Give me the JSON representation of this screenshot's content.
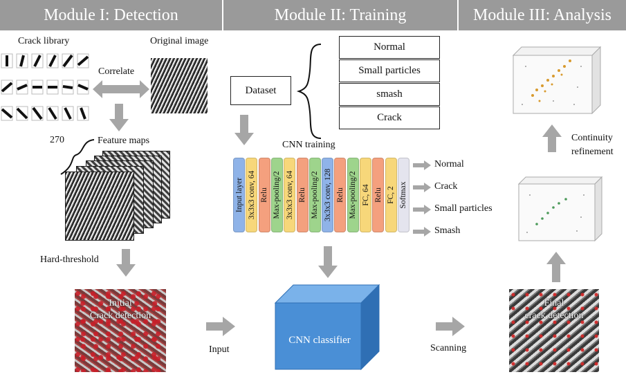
{
  "headers": {
    "module1": "Module I: Detection",
    "module2": "Module II: Training",
    "module3": "Module III: Analysis"
  },
  "module1": {
    "crack_library": "Crack library",
    "original_image": "Original image",
    "correlate": "Correlate",
    "feature_count": "270",
    "feature_maps": "Feature maps",
    "hard_threshold": "Hard-threshold",
    "initial_detection_line1": "Initial",
    "initial_detection_line2": "Crack detection"
  },
  "module2": {
    "dataset": "Dataset",
    "categories": [
      "Normal",
      "Small particles",
      "smash",
      "Crack"
    ],
    "cnn_training": "CNN training",
    "layers": [
      {
        "label": "Input layer",
        "color": "#8fb3e8"
      },
      {
        "label": "3x3x3 conv, 64",
        "color": "#f7d77a"
      },
      {
        "label": "Relu",
        "color": "#f4a07e"
      },
      {
        "label": "Max-pooling/2",
        "color": "#9ed48c"
      },
      {
        "label": "3x3x3 conv, 64",
        "color": "#f7d77a"
      },
      {
        "label": "Relu",
        "color": "#f4a07e"
      },
      {
        "label": "Max-pooling/2",
        "color": "#9ed48c"
      },
      {
        "label": "3x3x3 conv, 128",
        "color": "#8fb3e8"
      },
      {
        "label": "Relu",
        "color": "#f4a07e"
      },
      {
        "label": "Max-pooling/2",
        "color": "#9ed48c"
      },
      {
        "label": "FC, 64",
        "color": "#f7d77a"
      },
      {
        "label": "Relu",
        "color": "#f4a07e"
      },
      {
        "label": "FC, 2",
        "color": "#f7d77a"
      },
      {
        "label": "Softmax",
        "color": "#e4e4ee"
      }
    ],
    "outputs": [
      "Normal",
      "Crack",
      "Small particles",
      "Smash"
    ],
    "input": "Input",
    "cnn_classifier": "CNN classifier",
    "scanning": "Scanning"
  },
  "module3": {
    "continuity_line1": "Continuity",
    "continuity_line2": "refinement",
    "final_detection_line1": "Final",
    "final_detection_line2": "crack detection"
  },
  "colors": {
    "header_bg": "#9a9a9a",
    "arrow": "#a6a6a6",
    "cube_front": "#4a8fd6",
    "cube_top": "#7ab2ea",
    "cube_side": "#2f6fb4"
  }
}
